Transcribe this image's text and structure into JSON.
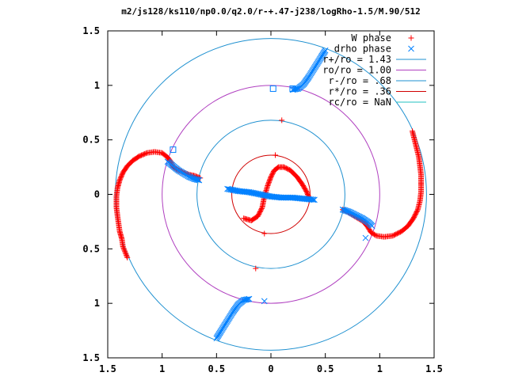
{
  "chart_data": {
    "type": "scatter",
    "title": "m2/js128/ks110/np0.0/q2.0/r-+.47-j238/logRho-1.5/M.90/512",
    "xlim": [
      -1.5,
      1.5
    ],
    "ylim": [
      -1.5,
      1.5
    ],
    "x_ticks": [
      -1.5,
      -1,
      -0.5,
      0,
      0.5,
      1,
      1.5
    ],
    "y_ticks": [
      -1.5,
      -1,
      -0.5,
      0,
      0.5,
      1,
      1.5
    ],
    "x_tick_labels": [
      "1.5",
      "1",
      "0.5",
      "0",
      "0.5",
      "1",
      "1.5"
    ],
    "y_tick_labels": [
      "1.5",
      "1",
      "0.5",
      "0",
      "0.5",
      "1",
      "1.5"
    ],
    "grid": false,
    "legend_position": "top-right",
    "legend": [
      {
        "label": "W phase",
        "kind": "points",
        "marker": "plus",
        "color": "#ff0000"
      },
      {
        "label": "drho phase",
        "kind": "points",
        "marker": "cross",
        "color": "#0080ff"
      },
      {
        "label": "r+/ro = 1.43",
        "kind": "circle",
        "radius": 1.43,
        "color": "#1e90d0"
      },
      {
        "label": "ro/ro = 1.00",
        "kind": "circle",
        "radius": 1.0,
        "color": "#b040c0"
      },
      {
        "label": "r-/ro = .68",
        "kind": "circle",
        "radius": 0.68,
        "color": "#1e90d0"
      },
      {
        "label": "r*/ro = .36",
        "kind": "circle",
        "radius": 0.36,
        "color": "#d00000"
      },
      {
        "label": "rc/ro = NaN",
        "kind": "circle",
        "radius": null,
        "color": "#20c0c0"
      }
    ],
    "series": [
      {
        "legend_index": 0,
        "marker": "plus",
        "color": "#ff0000",
        "segments": [
          [
            [
              -0.25,
              -0.22
            ],
            [
              -0.18,
              -0.24
            ],
            [
              -0.12,
              -0.2
            ],
            [
              -0.08,
              -0.12
            ],
            [
              -0.06,
              -0.02
            ],
            [
              -0.03,
              0.08
            ],
            [
              0.0,
              0.16
            ],
            [
              0.03,
              0.22
            ],
            [
              0.07,
              0.25
            ],
            [
              0.12,
              0.25
            ],
            [
              0.18,
              0.22
            ],
            [
              0.24,
              0.16
            ],
            [
              0.29,
              0.09
            ],
            [
              0.33,
              0.02
            ],
            [
              0.35,
              -0.03
            ]
          ],
          [
            [
              -1.42,
              -0.12
            ],
            [
              -1.42,
              -0.02
            ],
            [
              -1.41,
              0.06
            ],
            [
              -1.39,
              0.13
            ],
            [
              -1.36,
              0.2
            ],
            [
              -1.32,
              0.26
            ],
            [
              -1.27,
              0.31
            ],
            [
              -1.21,
              0.35
            ],
            [
              -1.14,
              0.38
            ],
            [
              -1.07,
              0.39
            ],
            [
              -1.0,
              0.38
            ],
            [
              -0.95,
              0.34
            ],
            [
              -0.92,
              0.3
            ],
            [
              -0.9,
              0.25
            ],
            [
              -0.85,
              0.22
            ],
            [
              -0.8,
              0.2
            ],
            [
              -0.75,
              0.18
            ],
            [
              -0.7,
              0.17
            ],
            [
              -0.65,
              0.15
            ]
          ],
          [
            [
              1.38,
              0.1
            ],
            [
              1.38,
              0.02
            ],
            [
              1.37,
              -0.06
            ],
            [
              1.35,
              -0.14
            ],
            [
              1.31,
              -0.22
            ],
            [
              1.26,
              -0.29
            ],
            [
              1.2,
              -0.34
            ],
            [
              1.12,
              -0.38
            ],
            [
              1.04,
              -0.39
            ],
            [
              0.97,
              -0.38
            ],
            [
              0.92,
              -0.35
            ],
            [
              0.89,
              -0.3
            ],
            [
              0.85,
              -0.25
            ],
            [
              0.8,
              -0.22
            ],
            [
              0.75,
              -0.19
            ],
            [
              0.7,
              -0.16
            ],
            [
              0.66,
              -0.14
            ]
          ],
          [
            [
              -1.42,
              -0.12
            ],
            [
              -1.41,
              -0.2
            ],
            [
              -1.4,
              -0.27
            ],
            [
              -1.39,
              -0.34
            ],
            [
              -1.37,
              -0.41
            ],
            [
              -1.36,
              -0.48
            ],
            [
              -1.32,
              -0.58
            ]
          ],
          [
            [
              1.38,
              0.1
            ],
            [
              1.38,
              0.18
            ],
            [
              1.37,
              0.26
            ],
            [
              1.36,
              0.34
            ],
            [
              1.34,
              0.42
            ],
            [
              1.32,
              0.5
            ],
            [
              1.3,
              0.58
            ]
          ]
        ],
        "points": [
          [
            0.1,
            0.68
          ],
          [
            0.04,
            0.36
          ],
          [
            -0.06,
            -0.36
          ],
          [
            -0.14,
            -0.68
          ]
        ]
      },
      {
        "legend_index": 1,
        "marker": "cross",
        "color": "#0080ff",
        "segments": [
          [
            [
              -0.4,
              0.05
            ],
            [
              -0.3,
              0.03
            ],
            [
              -0.2,
              0.02
            ],
            [
              -0.1,
              0.0
            ],
            [
              0.0,
              -0.02
            ],
            [
              0.1,
              -0.03
            ],
            [
              0.2,
              -0.03
            ],
            [
              0.3,
              -0.04
            ],
            [
              0.4,
              -0.05
            ]
          ],
          [
            [
              0.5,
              1.32
            ],
            [
              0.45,
              1.24
            ],
            [
              0.4,
              1.16
            ],
            [
              0.35,
              1.08
            ],
            [
              0.3,
              1.01
            ],
            [
              0.25,
              0.97
            ],
            [
              0.2,
              0.96
            ]
          ],
          [
            [
              -0.5,
              -1.32
            ],
            [
              -0.45,
              -1.24
            ],
            [
              -0.4,
              -1.16
            ],
            [
              -0.35,
              -1.08
            ],
            [
              -0.3,
              -1.01
            ],
            [
              -0.25,
              -0.97
            ],
            [
              -0.2,
              -0.96
            ]
          ],
          [
            [
              -0.95,
              0.3
            ],
            [
              -0.9,
              0.26
            ],
            [
              -0.85,
              0.22
            ],
            [
              -0.8,
              0.19
            ],
            [
              -0.75,
              0.16
            ],
            [
              -0.7,
              0.14
            ],
            [
              -0.66,
              0.13
            ]
          ],
          [
            [
              0.66,
              -0.14
            ],
            [
              0.72,
              -0.16
            ],
            [
              0.78,
              -0.19
            ],
            [
              0.84,
              -0.22
            ],
            [
              0.9,
              -0.26
            ],
            [
              0.93,
              -0.29
            ]
          ]
        ],
        "points": [
          [
            0.87,
            -0.4
          ],
          [
            -0.06,
            -0.98
          ]
        ]
      },
      {
        "legend_index": 1,
        "marker": "square",
        "color": "#0080ff",
        "segments": [],
        "points": [
          [
            -0.9,
            0.41
          ],
          [
            0.02,
            0.97
          ],
          [
            0.2,
            0.97
          ]
        ]
      }
    ]
  }
}
